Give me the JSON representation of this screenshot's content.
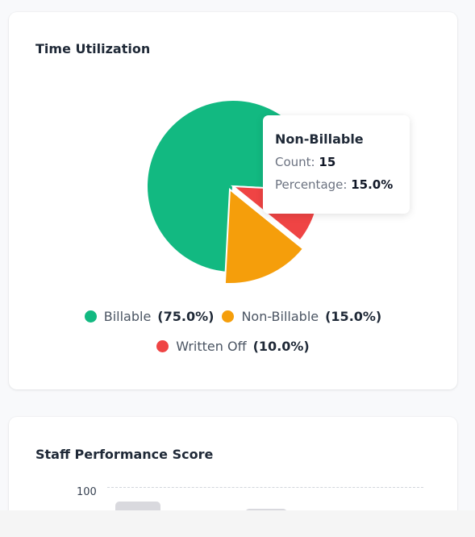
{
  "time_utilization": {
    "title": "Time Utilization",
    "chart_data": {
      "type": "pie",
      "slices": [
        {
          "name": "Billable",
          "value": 75.0,
          "color": "#12b981"
        },
        {
          "name": "Non-Billable",
          "value": 15.0,
          "color": "#f59e0b"
        },
        {
          "name": "Written Off",
          "value": 10.0,
          "color": "#ef4444"
        }
      ],
      "active_slice": "Non-Billable",
      "legend_position": "bottom"
    },
    "legend": [
      {
        "label": "Billable",
        "pct": "(75.0%)",
        "color": "#12b981"
      },
      {
        "label": "Non-Billable",
        "pct": "(15.0%)",
        "color": "#f59e0b"
      },
      {
        "label": "Written Off",
        "pct": "(10.0%)",
        "color": "#ef4444"
      }
    ],
    "tooltip": {
      "title": "Non-Billable",
      "count_label": "Count:",
      "count_value": "15",
      "percentage_label": "Percentage:",
      "percentage_value": "15.0%"
    }
  },
  "staff_performance": {
    "title": "Staff Performance Score",
    "chart_data": {
      "type": "bar",
      "y_ticks": [
        "100"
      ],
      "grid": true
    }
  }
}
